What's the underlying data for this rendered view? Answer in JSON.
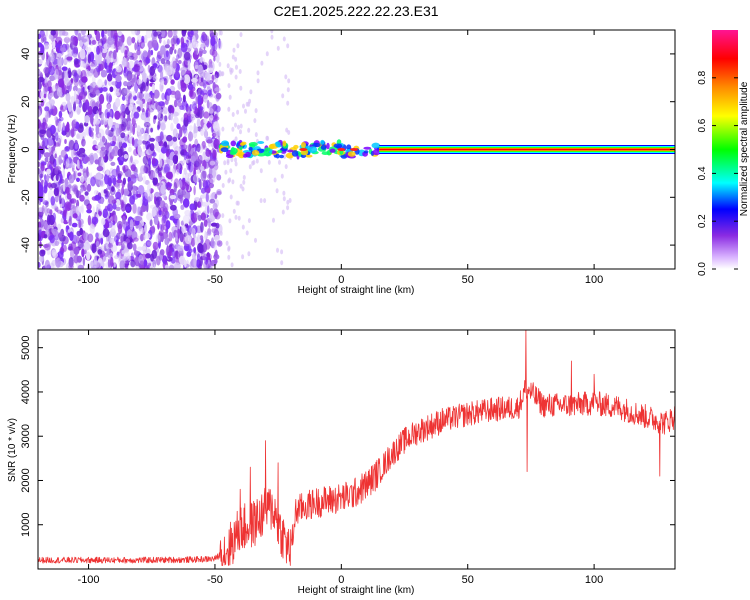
{
  "figure": {
    "title": "C2E1.2025.222.22.23.E31"
  },
  "chart_data": [
    {
      "type": "heatmap",
      "xlabel": "Height of straight line (km)",
      "ylabel": "Frequency (Hz)",
      "xlim": [
        -120,
        132
      ],
      "ylim": [
        -50,
        50
      ],
      "xticks": [
        -100,
        -50,
        0,
        50,
        100
      ],
      "yticks": [
        -40,
        -20,
        0,
        20,
        40
      ],
      "noise_region_x": [
        -120,
        -48
      ],
      "sparse_region_x": [
        -48,
        -20
      ],
      "carrier_frequency": 0,
      "carrier_start_x": 15,
      "grid": false,
      "colorbar": {
        "label": "Normalized spectral amplitude",
        "range": [
          0,
          1
        ],
        "ticks": [
          0.0,
          0.2,
          0.4,
          0.6,
          0.8
        ],
        "tick_labels": [
          "0.0",
          "0.2",
          "0.4",
          "0.6",
          "0.8"
        ],
        "colormap": [
          "#ffffff",
          "#8a2be2",
          "#0000ff",
          "#00ffff",
          "#00ff00",
          "#ffff00",
          "#ff8c00",
          "#ff0000",
          "#ff1493"
        ]
      }
    },
    {
      "type": "line",
      "xlabel": "Height of straight line (km)",
      "ylabel": "SNR (10 * v/v)",
      "xlim": [
        -120,
        132
      ],
      "ylim": [
        0,
        5400
      ],
      "xticks": [
        -100,
        -50,
        0,
        50,
        100
      ],
      "yticks": [
        1000,
        2000,
        3000,
        4000,
        5000
      ],
      "color": "#ee3333",
      "grid": false,
      "series": [
        {
          "x": [
            -120,
            -100,
            -80,
            -60,
            -50,
            -45,
            -40,
            -35,
            -30,
            -27,
            -25,
            -22,
            -20,
            -18,
            -15,
            -10,
            -5,
            0,
            5,
            10,
            15,
            20,
            25,
            30,
            40,
            50,
            60,
            70,
            73,
            80,
            90,
            100,
            110,
            120,
            128,
            132
          ],
          "values": [
            200,
            200,
            200,
            210,
            230,
            450,
            900,
            1000,
            1300,
            1400,
            1000,
            600,
            400,
            1300,
            1400,
            1500,
            1550,
            1600,
            1700,
            1900,
            2200,
            2600,
            2900,
            3100,
            3350,
            3500,
            3600,
            3650,
            4100,
            3700,
            3700,
            3750,
            3650,
            3450,
            3300,
            3450
          ]
        }
      ],
      "spikes": [
        {
          "x": -40,
          "value": 1800
        },
        {
          "x": -36,
          "value": 2300
        },
        {
          "x": -30,
          "value": 2900
        },
        {
          "x": -25,
          "value": 2400
        },
        {
          "x": 73,
          "value": 5400
        },
        {
          "x": 73.5,
          "value": 2200
        },
        {
          "x": 91,
          "value": 4700
        },
        {
          "x": 100,
          "value": 4400
        },
        {
          "x": 126,
          "value": 2100
        }
      ]
    }
  ]
}
